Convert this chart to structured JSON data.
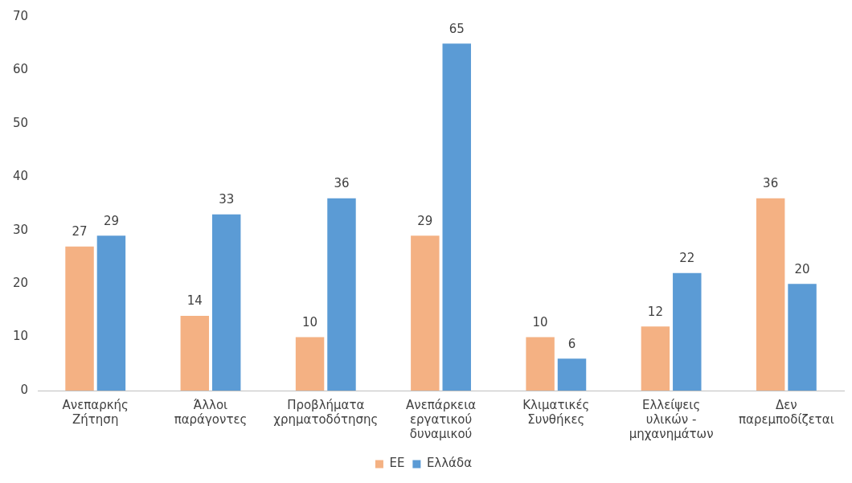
{
  "chart_data": {
    "type": "bar",
    "categories": [
      "Ανεπαρκής Ζήτηση",
      "Άλλοι παράγοντες",
      "Προβλήματα χρηματοδότησης",
      "Ανεπάρκεια εργατικού δυναμικού",
      "Κλιματικές Συνθήκες",
      "Ελλείψεις υλικών - μηχανημάτων",
      "Δεν παρεμποδίζεται"
    ],
    "series": [
      {
        "name": "ΕΕ",
        "color": "#f4b183",
        "values": [
          27,
          14,
          10,
          29,
          10,
          12,
          36
        ]
      },
      {
        "name": "Ελλάδα",
        "color": "#5b9bd5",
        "values": [
          29,
          33,
          36,
          65,
          6,
          22,
          20
        ]
      }
    ],
    "ylim": [
      0,
      70
    ],
    "yticks": [
      0,
      10,
      20,
      30,
      40,
      50,
      60,
      70
    ],
    "grid": false,
    "legend": "bottom",
    "data_labels": true
  }
}
